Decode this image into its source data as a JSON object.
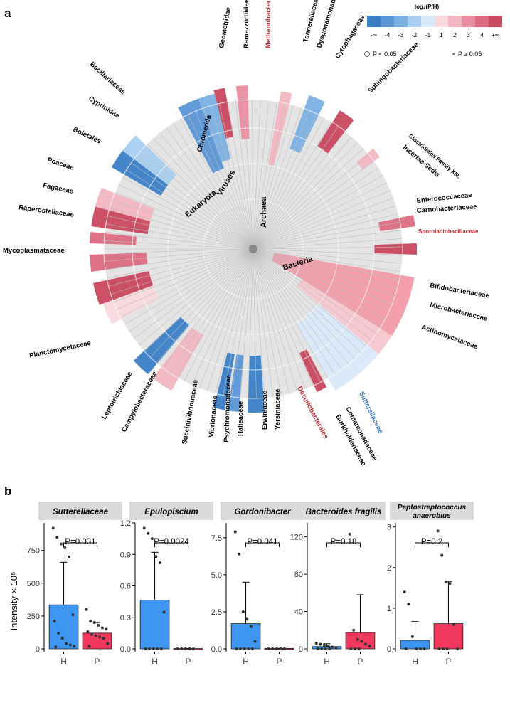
{
  "panel_a": {
    "label": "a",
    "legend": {
      "title": "log₂(P/H)",
      "scale_labels": [
        "-∞",
        "-4",
        "-3",
        "-2",
        "-1",
        "1",
        "2",
        "3",
        "4",
        "+∞"
      ],
      "colors": [
        "#3a7fc6",
        "#5a96d6",
        "#7ab0e2",
        "#a8cdef",
        "#d8e9f8",
        "#f7d9de",
        "#f2b6c1",
        "#e98ea0",
        "#dc6a80",
        "#c9485e"
      ],
      "sig_label": "P < 0.05",
      "nonsig_label": "P ≥ 0.05"
    },
    "domains": [
      "Bacteria",
      "Archaea",
      "Viruses",
      "Eukaryota"
    ],
    "clades": [
      {
        "name": "Methanobacteriaceae",
        "color": "#c0282f",
        "x": 380,
        "y": 68,
        "rot": -90
      },
      {
        "name": "Ramazzottiidae",
        "color": "#000000",
        "x": 349,
        "y": 68,
        "rot": -90
      },
      {
        "name": "Geometridae",
        "color": "#000000",
        "x": 314,
        "y": 68,
        "rot": -80
      },
      {
        "name": "Chromerida",
        "color": "#000000",
        "x": 283,
        "y": 214,
        "rot": -75
      },
      {
        "name": "Bacillariaceae",
        "color": "#000000",
        "x": 126,
        "y": 91,
        "rot": 42
      },
      {
        "name": "Cyprinidae",
        "color": "#000000",
        "x": 124,
        "y": 140,
        "rot": 32
      },
      {
        "name": "Boletales",
        "color": "#000000",
        "x": 102,
        "y": 184,
        "rot": 25
      },
      {
        "name": "Poaceae",
        "color": "#000000",
        "x": 66,
        "y": 227,
        "rot": 18
      },
      {
        "name": "Fagaceae",
        "color": "#000000",
        "x": 60,
        "y": 263,
        "rot": 12
      },
      {
        "name": "Raperosteliaceae",
        "color": "#000000",
        "x": 26,
        "y": 294,
        "rot": 8
      },
      {
        "name": "Mycoplasmataceae",
        "color": "#000000",
        "x": 4,
        "y": 355,
        "rot": 0
      },
      {
        "name": "Planctomycetaceae",
        "color": "#000000",
        "x": 42,
        "y": 503,
        "rot": -12
      },
      {
        "name": "Leptotrichiaceae",
        "color": "#000000",
        "x": 148,
        "y": 590,
        "rot": -60
      },
      {
        "name": "Campylobacteraceae",
        "color": "#000000",
        "x": 176,
        "y": 608,
        "rot": -62
      },
      {
        "name": "Succinivibrionaceae",
        "color": "#000000",
        "x": 262,
        "y": 625,
        "rot": -80
      },
      {
        "name": "Vibrionaceae",
        "color": "#000000",
        "x": 300,
        "y": 615,
        "rot": -85
      },
      {
        "name": "Psychromonadaceae",
        "color": "#000000",
        "x": 321,
        "y": 622,
        "rot": -88
      },
      {
        "name": "Halieaceae",
        "color": "#000000",
        "x": 341,
        "y": 613,
        "rot": -90
      },
      {
        "name": "Erwiniaceae",
        "color": "#000000",
        "x": 375,
        "y": 604,
        "rot": -90
      },
      {
        "name": "Yersiniaceae",
        "color": "#000000",
        "x": 393,
        "y": 604,
        "rot": -90
      },
      {
        "name": "Desulfobacterales",
        "color": "#c0282f",
        "x": 418,
        "y": 545,
        "rot": 62
      },
      {
        "name": "Comamonadaceae",
        "color": "#000000",
        "x": 486,
        "y": 574,
        "rot": 62
      },
      {
        "name": "Burkholderiaceae",
        "color": "#000000",
        "x": 472,
        "y": 585,
        "rot": 62
      },
      {
        "name": "Sutterellaceae",
        "color": "#3c77c6",
        "x": 505,
        "y": 552,
        "rot": 64
      },
      {
        "name": "Actinomycetaceae",
        "color": "#000000",
        "x": 592,
        "y": 462,
        "rot": 20
      },
      {
        "name": "Microbacteriaceae",
        "color": "#000000",
        "x": 604,
        "y": 431,
        "rot": 14
      },
      {
        "name": "Bifidobacteriaceae",
        "color": "#000000",
        "x": 604,
        "y": 404,
        "rot": 10
      },
      {
        "name": "Sporolactobacillaceae",
        "color": "#c0282f",
        "x": 588,
        "y": 328,
        "rot": 0
      },
      {
        "name": "Carnobacteriaceae",
        "color": "#000000",
        "x": 586,
        "y": 299,
        "rot": -4
      },
      {
        "name": "Enterococcaceae",
        "color": "#000000",
        "x": 586,
        "y": 285,
        "rot": -6
      },
      {
        "name": "Clostridiales Family XIII.",
        "color": "#000000",
        "x": 574,
        "y": 192,
        "rot": 40
      },
      {
        "name": "Incertae Sedis",
        "color": "#000000",
        "x": 566,
        "y": 208,
        "rot": 40
      },
      {
        "name": "Sphingobacteriaceae",
        "color": "#000000",
        "x": 521,
        "y": 131,
        "rot": -45
      },
      {
        "name": "Cytophagaceae",
        "color": "#000000",
        "x": 476,
        "y": 83,
        "rot": -58
      },
      {
        "name": "Tannerellaceae",
        "color": "#000000",
        "x": 432,
        "y": 60,
        "rot": -76
      },
      {
        "name": "Dysgonamonadaceae",
        "color": "#000000",
        "x": 451,
        "y": 68,
        "rot": -73
      }
    ]
  },
  "panel_b": {
    "label": "b",
    "y_axis_title": "Intensity × 10⁵",
    "x_categories": [
      "H",
      "P"
    ]
  },
  "chart_data": {
    "type": "bar",
    "panels": [
      {
        "title": "Sutterellaceae",
        "categories": [
          "H",
          "P"
        ],
        "means": [
          335,
          120
        ],
        "error_upper": [
          660,
          200
        ],
        "ylim": [
          0,
          960
        ],
        "yticks": [
          "0",
          "250",
          "500",
          "750"
        ],
        "p_value": "P=0.031",
        "points_H": [
          920,
          850,
          800,
          770,
          700,
          260,
          210,
          120,
          80,
          40,
          30,
          20,
          15
        ],
        "points_P": [
          300,
          210,
          200,
          180,
          160,
          150,
          130,
          110,
          100,
          90,
          80,
          40,
          20
        ]
      },
      {
        "title": "Epulopiscium",
        "categories": [
          "H",
          "P"
        ],
        "means": [
          0.465,
          0.003
        ],
        "error_upper": [
          0.92,
          0.004
        ],
        "ylim": [
          0,
          1.2
        ],
        "yticks": [
          "0.0",
          "0.3",
          "0.6",
          "0.9",
          "1.2"
        ],
        "p_value": "P=0.0024",
        "points_H": [
          1.15,
          1.1,
          1.05,
          0.88,
          0.82,
          0.35,
          0.0,
          0.0,
          0.0,
          0.0,
          0.0
        ],
        "points_P": [
          0.0,
          0.0,
          0.0,
          0.0,
          0.0
        ]
      },
      {
        "title": "Gordonibacter",
        "categories": [
          "H",
          "P"
        ],
        "means": [
          1.7,
          0.03
        ],
        "error_upper": [
          4.5,
          0.04
        ],
        "ylim": [
          0,
          8.5
        ],
        "yticks": [
          "0.0",
          "2.5",
          "5.0",
          "7.5"
        ],
        "p_value": "P=0.041",
        "points_H": [
          7.9,
          6.4,
          2.5,
          2.0,
          1.5,
          0.5,
          0.0,
          0.0,
          0.0,
          0.0,
          0.0
        ],
        "points_P": [
          0.0,
          0.0,
          0.0,
          0.0,
          0.0
        ]
      },
      {
        "title": "Bacteroides fragilis",
        "categories": [
          "H",
          "P"
        ],
        "means": [
          2.5,
          17.5
        ],
        "error_upper": [
          5.5,
          58
        ],
        "ylim": [
          0,
          135
        ],
        "yticks": [
          "0",
          "40",
          "80",
          "120"
        ],
        "p_value": "P=0.18",
        "points_H": [
          6,
          5,
          4,
          3,
          2,
          1,
          0,
          0,
          0,
          0
        ],
        "points_P": [
          123,
          20,
          10,
          8,
          5,
          3,
          0,
          0,
          0
        ]
      },
      {
        "title": "Peptostreptococcus anaerobius",
        "categories": [
          "H",
          "P"
        ],
        "means": [
          0.21,
          0.62
        ],
        "error_upper": [
          0.67,
          1.65
        ],
        "ylim": [
          0,
          3.1
        ],
        "yticks": [
          "0",
          "1",
          "2",
          "3"
        ],
        "p_value": "P=0.2",
        "points_H": [
          1.4,
          1.1,
          0.3,
          0.0,
          0.0,
          0.0,
          0.0
        ],
        "points_P": [
          2.9,
          2.3,
          1.65,
          1.6,
          0.6,
          0.0,
          0.0,
          0.0,
          0.0
        ]
      }
    ],
    "colors": {
      "H": "#3d96f2",
      "P": "#f2385c"
    }
  }
}
